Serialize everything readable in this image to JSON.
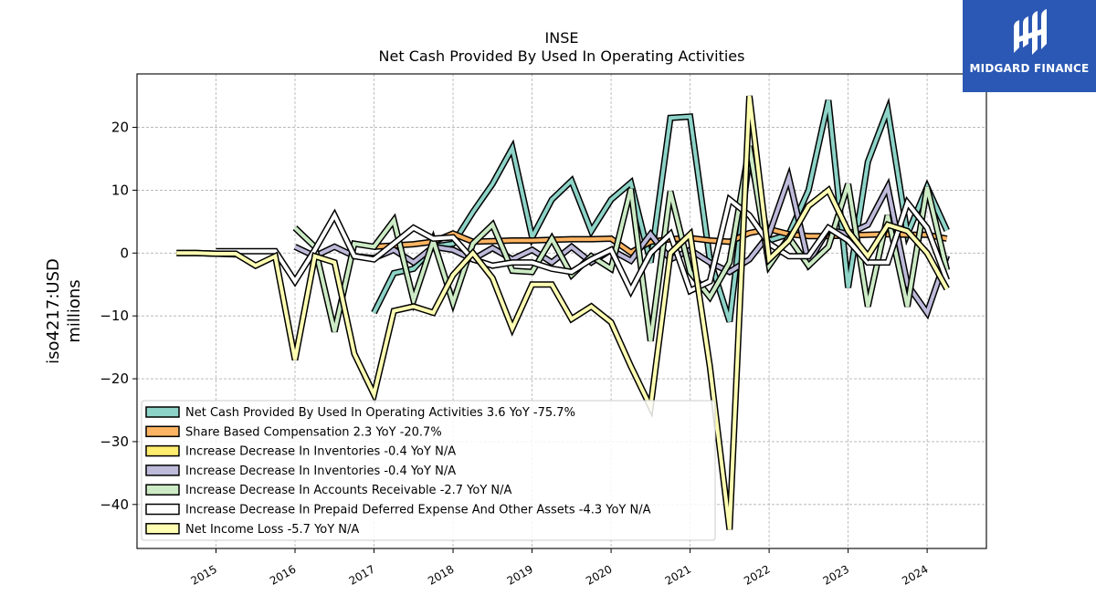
{
  "chart_data": {
    "type": "line",
    "title": "INSE",
    "subtitle": "Net Cash Provided By Used In Operating Activities",
    "ylabel": "iso4217:USD\nmillions",
    "xlabel": "",
    "xlim": [
      2014.0,
      2024.75
    ],
    "ylim": [
      -47,
      28.5
    ],
    "xticks": [
      2015,
      2016,
      2017,
      2018,
      2019,
      2020,
      2021,
      2022,
      2023,
      2024
    ],
    "yticks": [
      20,
      10,
      0,
      -10,
      -20,
      -30,
      -40
    ],
    "ytick_labels": [
      "20",
      "10",
      "0",
      "−10",
      "−20",
      "−30",
      "−40"
    ],
    "grid": true,
    "legend_position": "lower-left",
    "series": [
      {
        "name": "Net Cash Provided By Used In Operating Activities  3.6 YoY -75.7%",
        "color": "#8dd3c7",
        "x": [
          2017.0,
          2017.25,
          2017.5,
          2017.75,
          2018.0,
          2018.25,
          2018.5,
          2018.75,
          2019.0,
          2019.25,
          2019.5,
          2019.75,
          2020.0,
          2020.25,
          2020.5,
          2020.75,
          2021.0,
          2021.25,
          2021.5,
          2021.75,
          2022.0,
          2022.25,
          2022.5,
          2022.75,
          2023.0,
          2023.25,
          2023.5,
          2023.75,
          2024.0,
          2024.25
        ],
        "y": [
          -9.5,
          -3.2,
          -2.5,
          1.0,
          1.5,
          6.5,
          11.0,
          16.7,
          2.5,
          8.5,
          11.5,
          3.5,
          8.5,
          11.2,
          -1.5,
          21.5,
          21.7,
          -1.0,
          -10.9,
          15.5,
          2.0,
          3.0,
          10.0,
          24.3,
          -5.5,
          14.5,
          22.8,
          3.0,
          10.5,
          3.6
        ]
      },
      {
        "name": "Share Based Compensation  2.3 YoY -20.7%",
        "color": "#fdb462",
        "x": [
          2017.0,
          2017.25,
          2017.5,
          2017.75,
          2018.0,
          2018.25,
          2018.5,
          2018.75,
          2019.0,
          2019.25,
          2019.5,
          2019.75,
          2020.0,
          2020.25,
          2020.5,
          2020.75,
          2021.0,
          2021.25,
          2021.5,
          2021.75,
          2022.0,
          2022.25,
          2022.5,
          2022.75,
          2023.0,
          2023.25,
          2023.5,
          2023.75,
          2024.0,
          2024.25
        ],
        "y": [
          1.0,
          1.2,
          1.4,
          1.8,
          3.1,
          1.8,
          1.9,
          2.0,
          2.0,
          2.1,
          2.2,
          2.2,
          2.3,
          0.1,
          1.8,
          2.2,
          2.4,
          2.0,
          1.8,
          3.2,
          3.8,
          3.0,
          2.7,
          2.7,
          2.8,
          2.9,
          3.0,
          2.9,
          2.9,
          2.3
        ]
      },
      {
        "name": "Increase Decrease In Inventories  -0.4 YoY N/A",
        "color": "#ffed6f",
        "x": [
          2014.5,
          2014.75,
          2015.0,
          2015.25
        ],
        "y": [
          0.0,
          0.0,
          -0.1,
          -0.2
        ]
      },
      {
        "name": "Increase Decrease In Inventories  -0.4 YoY N/A",
        "color": "#bebada",
        "x": [
          2016.0,
          2016.25,
          2016.5,
          2016.75,
          2017.0,
          2017.25,
          2017.5,
          2017.75,
          2018.0,
          2018.25,
          2018.5,
          2018.75,
          2019.0,
          2019.25,
          2019.5,
          2019.75,
          2020.0,
          2020.25,
          2020.5,
          2020.75,
          2021.0,
          2021.25,
          2021.5,
          2021.75,
          2022.0,
          2022.25,
          2022.5,
          2022.75,
          2023.0,
          2023.25,
          2023.5,
          2023.75,
          2024.0,
          2024.25
        ],
        "y": [
          1.0,
          -0.5,
          1.0,
          -0.5,
          -0.8,
          0.5,
          -1.5,
          1.0,
          0.5,
          -1.0,
          0.8,
          -1.0,
          0.5,
          -1.5,
          1.0,
          -1.5,
          0.5,
          -1.2,
          3.0,
          -1.0,
          0.5,
          -1.5,
          -3.0,
          -1.0,
          3.0,
          12.0,
          -1.5,
          3.8,
          3.0,
          4.5,
          10.5,
          -5.0,
          -9.5,
          -0.4
        ]
      },
      {
        "name": "Increase Decrease In Accounts Receivable  -2.7 YoY N/A",
        "color": "#ccebc5",
        "x": [
          2016.0,
          2016.25,
          2016.5,
          2016.75,
          2017.0,
          2017.25,
          2017.5,
          2017.75,
          2018.0,
          2018.25,
          2018.5,
          2018.75,
          2019.0,
          2019.25,
          2019.5,
          2019.75,
          2020.0,
          2020.25,
          2020.5,
          2020.75,
          2021.0,
          2021.25,
          2021.5,
          2021.75,
          2022.0,
          2022.25,
          2022.5,
          2022.75,
          2023.0,
          2023.25,
          2023.5,
          2023.75,
          2024.0,
          2024.25
        ],
        "y": [
          4.0,
          1.0,
          -12.5,
          1.5,
          1.0,
          5.2,
          -7.5,
          2.0,
          -7.9,
          1.5,
          4.5,
          -2.8,
          -3.0,
          2.3,
          -3.5,
          -0.5,
          -2.5,
          10.2,
          -14.0,
          9.8,
          -3.0,
          -7.0,
          -1.5,
          17.0,
          -2.0,
          2.5,
          -2.0,
          1.0,
          11.0,
          -8.5,
          6.0,
          -8.5,
          10.5,
          -2.7
        ]
      },
      {
        "name": "Increase Decrease In Prepaid Deferred Expense And Other Assets  -4.3 YoY N/A",
        "color": "#ffffff",
        "x": [
          2015.0,
          2015.25,
          2015.5,
          2015.75,
          2016.0,
          2016.25,
          2016.5,
          2016.75,
          2017.0,
          2017.25,
          2017.5,
          2017.75,
          2018.0,
          2018.25,
          2018.5,
          2018.75,
          2019.0,
          2019.25,
          2019.5,
          2019.75,
          2020.0,
          2020.25,
          2020.5,
          2020.75,
          2021.0,
          2021.25,
          2021.5,
          2021.75,
          2022.0,
          2022.25,
          2022.5,
          2022.75,
          2023.0,
          2023.25,
          2023.5,
          2023.75,
          2024.0,
          2024.25
        ],
        "y": [
          0.3,
          0.3,
          0.3,
          0.3,
          -4.5,
          0.5,
          6.0,
          -0.5,
          -1.0,
          1.5,
          4.0,
          2.3,
          2.5,
          -1.0,
          -2.0,
          -1.5,
          -1.5,
          -2.5,
          -3.0,
          -1.0,
          0.5,
          -6.0,
          0.0,
          3.0,
          -6.0,
          -4.5,
          8.5,
          6.0,
          1.5,
          -0.5,
          -0.5,
          4.0,
          2.0,
          -1.5,
          -1.5,
          8.0,
          4.0,
          -4.3
        ]
      },
      {
        "name": "Net Income Loss  -5.7 YoY N/A",
        "color": "#ffffb3",
        "x": [
          2014.5,
          2014.75,
          2015.0,
          2015.25,
          2015.5,
          2015.75,
          2016.0,
          2016.25,
          2016.5,
          2016.75,
          2017.0,
          2017.25,
          2017.5,
          2017.75,
          2018.0,
          2018.25,
          2018.5,
          2018.75,
          2019.0,
          2019.25,
          2019.5,
          2019.75,
          2020.0,
          2020.25,
          2020.5,
          2020.75,
          2021.0,
          2021.25,
          2021.5,
          2021.75,
          2022.0,
          2022.25,
          2022.5,
          2022.75,
          2023.0,
          2023.25,
          2023.5,
          2023.75,
          2024.0,
          2024.25
        ],
        "y": [
          0.0,
          0.0,
          -0.1,
          -0.1,
          -2.0,
          -0.5,
          -17.0,
          -0.5,
          -1.5,
          -16.0,
          -22.5,
          -9.2,
          -8.5,
          -9.5,
          -3.5,
          0.0,
          -4.0,
          -12.0,
          -5.0,
          -5.0,
          -10.5,
          -8.5,
          -11.0,
          -18.0,
          -24.5,
          0.0,
          3.0,
          -18.0,
          -44.0,
          25.0,
          -1.0,
          2.0,
          7.5,
          10.0,
          3.5,
          -0.5,
          4.5,
          3.5,
          0.0,
          -5.7
        ]
      }
    ]
  },
  "logo": {
    "text": "MIDGARD FINANCE"
  }
}
